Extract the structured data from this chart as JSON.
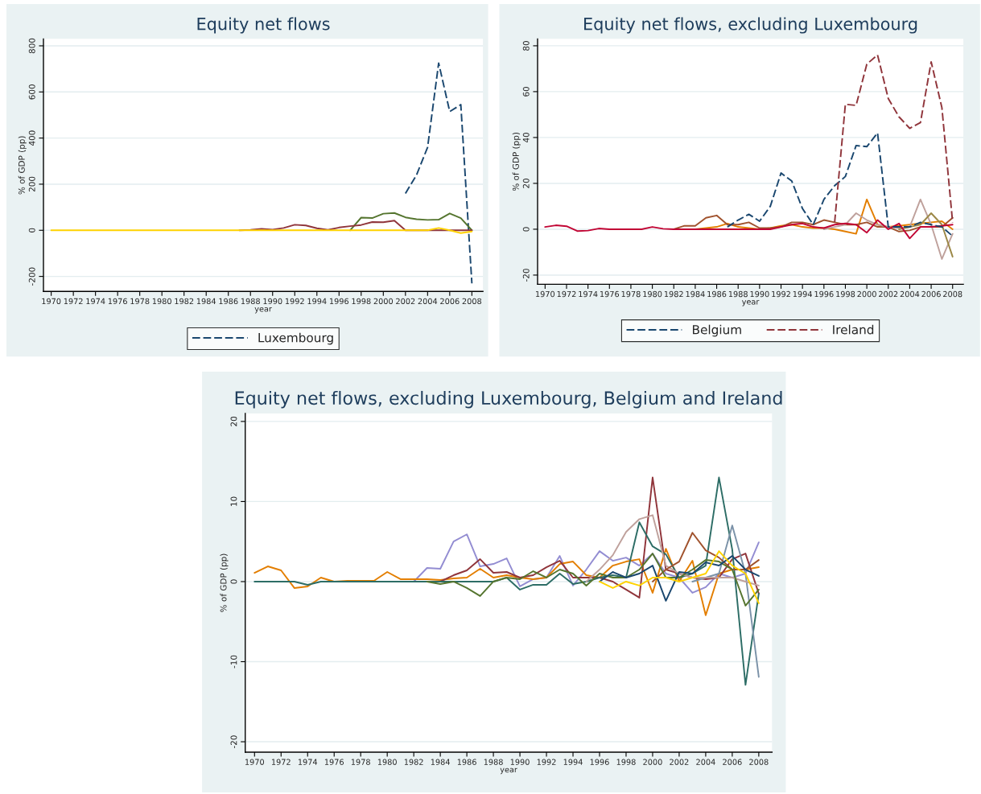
{
  "chart_data": [
    {
      "type": "line",
      "title": "Equity net flows",
      "xlabel": "year",
      "ylabel": "% of GDP (pp)",
      "x": [
        1970,
        1971,
        1972,
        1973,
        1974,
        1975,
        1976,
        1977,
        1978,
        1979,
        1980,
        1981,
        1982,
        1983,
        1984,
        1985,
        1986,
        1987,
        1988,
        1989,
        1990,
        1991,
        1992,
        1993,
        1994,
        1995,
        1996,
        1997,
        1998,
        1999,
        2000,
        2001,
        2002,
        2003,
        2004,
        2005,
        2006,
        2007,
        2008
      ],
      "xlim": [
        1969.3,
        2009
      ],
      "xticks": [
        1970,
        1972,
        1974,
        1976,
        1978,
        1980,
        1982,
        1984,
        1986,
        1988,
        1990,
        1992,
        1994,
        1996,
        1998,
        2000,
        2002,
        2004,
        2006,
        2008
      ],
      "ylim": [
        -265,
        830
      ],
      "yticks": [
        -200,
        0,
        200,
        400,
        600,
        800
      ],
      "grid": "y",
      "legend": "bottom",
      "series": [
        {
          "name": "Luxembourg",
          "color": "#1a476f",
          "line_style": "dashed",
          "values": [
            null,
            null,
            null,
            null,
            null,
            null,
            null,
            null,
            null,
            null,
            null,
            null,
            null,
            null,
            null,
            null,
            null,
            null,
            null,
            null,
            null,
            null,
            null,
            null,
            null,
            null,
            null,
            null,
            null,
            null,
            null,
            null,
            160,
            240,
            360,
            725,
            515,
            545,
            -230
          ]
        },
        {
          "color": "#55752f",
          "line_style": "solid",
          "values": [
            null,
            null,
            null,
            null,
            null,
            null,
            null,
            null,
            null,
            null,
            null,
            null,
            null,
            null,
            null,
            null,
            null,
            null,
            null,
            null,
            null,
            null,
            null,
            null,
            null,
            null,
            null,
            0,
            55,
            53,
            72,
            75,
            56,
            48,
            45,
            46,
            73,
            53,
            0
          ]
        },
        {
          "color": "#90353b",
          "line_style": "solid",
          "values": [
            null,
            null,
            null,
            null,
            null,
            null,
            null,
            null,
            null,
            null,
            null,
            null,
            null,
            null,
            null,
            null,
            null,
            0,
            2,
            6,
            3,
            10,
            24,
            21,
            9,
            2,
            12,
            18,
            23,
            36,
            35,
            42,
            0,
            0,
            0,
            0,
            0,
            0,
            0
          ]
        },
        {
          "color": "#ffd200",
          "line_style": "solid",
          "values": [
            0,
            0,
            0,
            0,
            0,
            0,
            0,
            0,
            0,
            0,
            0,
            0,
            0,
            0,
            0,
            0,
            0,
            0,
            0,
            0,
            0,
            0,
            0,
            0,
            0,
            0,
            0,
            0,
            0,
            0,
            0,
            0,
            0,
            0,
            0,
            10,
            0,
            -12,
            -5
          ]
        }
      ]
    },
    {
      "type": "line",
      "title": "Equity net flows, excluding Luxembourg",
      "xlabel": "year",
      "ylabel": "% of GDP (pp)",
      "x": [
        1970,
        1971,
        1972,
        1973,
        1974,
        1975,
        1976,
        1977,
        1978,
        1979,
        1980,
        1981,
        1982,
        1983,
        1984,
        1985,
        1986,
        1987,
        1988,
        1989,
        1990,
        1991,
        1992,
        1993,
        1994,
        1995,
        1996,
        1997,
        1998,
        1999,
        2000,
        2001,
        2002,
        2003,
        2004,
        2005,
        2006,
        2007,
        2008
      ],
      "xlim": [
        1969.3,
        2009
      ],
      "xticks": [
        1970,
        1972,
        1974,
        1976,
        1978,
        1980,
        1982,
        1984,
        1986,
        1988,
        1990,
        1992,
        1994,
        1996,
        1998,
        2000,
        2002,
        2004,
        2006,
        2008
      ],
      "ylim": [
        -24,
        83
      ],
      "yticks": [
        -20,
        0,
        20,
        40,
        60,
        80
      ],
      "grid": "y",
      "legend": "bottom",
      "series": [
        {
          "color": "#e37e00",
          "line_style": "solid",
          "values": [
            null,
            null,
            null,
            null,
            null,
            null,
            null,
            null,
            null,
            null,
            null,
            null,
            null,
            null,
            0,
            0.5,
            1,
            2.5,
            1,
            0.5,
            0,
            0.5,
            1.5,
            2,
            1,
            0.5,
            0.5,
            0,
            -1,
            -2,
            13,
            2,
            1,
            1.5,
            2,
            2.5,
            3,
            3.5,
            0
          ]
        },
        {
          "color": "#a0522d",
          "line_style": "solid",
          "values": [
            null,
            null,
            null,
            null,
            null,
            null,
            null,
            null,
            null,
            null,
            null,
            null,
            0,
            1.5,
            1.5,
            5,
            6,
            2,
            2,
            3,
            0.5,
            0.5,
            1,
            3,
            3,
            2,
            4,
            3,
            2,
            2,
            3,
            1,
            1,
            -1,
            -0.5,
            1,
            1,
            1,
            5
          ]
        },
        {
          "color": "#bfa19c",
          "line_style": "solid",
          "values": [
            null,
            null,
            null,
            null,
            null,
            null,
            null,
            null,
            null,
            null,
            null,
            null,
            null,
            null,
            null,
            null,
            null,
            null,
            null,
            null,
            null,
            null,
            null,
            null,
            null,
            null,
            0,
            1,
            2,
            7,
            4,
            2,
            1,
            0.5,
            1,
            13,
            2,
            -13,
            -2
          ]
        },
        {
          "color": "#9c8847",
          "line_style": "solid",
          "values": [
            null,
            null,
            null,
            null,
            null,
            null,
            null,
            null,
            null,
            null,
            null,
            null,
            null,
            null,
            null,
            null,
            null,
            null,
            null,
            null,
            null,
            null,
            null,
            null,
            null,
            null,
            null,
            null,
            null,
            null,
            null,
            null,
            null,
            0,
            1,
            2,
            7,
            2,
            -12
          ]
        },
        {
          "color": "#c10534",
          "line_style": "solid",
          "values": [
            1,
            1.7,
            1.3,
            -0.8,
            -0.6,
            0.3,
            0,
            0,
            0,
            0,
            1,
            0.2,
            0,
            0,
            0,
            0,
            0,
            0,
            0,
            0,
            0,
            0,
            1,
            2,
            2.5,
            1,
            0.5,
            2,
            2.5,
            2,
            -1.5,
            4,
            0,
            2.5,
            -4,
            1,
            1,
            1.5,
            2
          ]
        },
        {
          "name": "Belgium",
          "color": "#1a476f",
          "line_style": "dashed",
          "values": [
            null,
            null,
            null,
            null,
            null,
            null,
            null,
            null,
            null,
            null,
            null,
            null,
            null,
            null,
            null,
            null,
            null,
            1,
            4,
            6.5,
            3.5,
            10,
            24.5,
            21,
            9,
            2,
            13,
            19,
            23,
            36.5,
            36,
            42,
            1,
            1,
            1,
            3,
            2,
            1,
            -3
          ]
        },
        {
          "name": "Ireland",
          "color": "#90353b",
          "line_style": "dashed",
          "values": [
            null,
            null,
            null,
            null,
            null,
            null,
            null,
            null,
            null,
            null,
            null,
            null,
            null,
            null,
            null,
            null,
            null,
            null,
            null,
            null,
            null,
            null,
            null,
            null,
            null,
            null,
            null,
            3,
            54.5,
            54,
            72,
            76,
            57,
            49,
            44,
            46.5,
            73,
            53,
            3
          ]
        }
      ]
    },
    {
      "type": "line",
      "title": "Equity net flows, excluding Luxembourg, Belgium and Ireland",
      "xlabel": "year",
      "ylabel": "% of GDP (pp)",
      "x": [
        1970,
        1971,
        1972,
        1973,
        1974,
        1975,
        1976,
        1977,
        1978,
        1979,
        1980,
        1981,
        1982,
        1983,
        1984,
        1985,
        1986,
        1987,
        1988,
        1989,
        1990,
        1991,
        1992,
        1993,
        1994,
        1995,
        1996,
        1997,
        1998,
        1999,
        2000,
        2001,
        2002,
        2003,
        2004,
        2005,
        2006,
        2007,
        2008
      ],
      "xlim": [
        1969.3,
        2009
      ],
      "xticks": [
        1970,
        1972,
        1974,
        1976,
        1978,
        1980,
        1982,
        1984,
        1986,
        1988,
        1990,
        1992,
        1994,
        1996,
        1998,
        2000,
        2002,
        2004,
        2006,
        2008
      ],
      "ylim": [
        -21.3,
        21
      ],
      "yticks": [
        -20,
        -10,
        0,
        10,
        20
      ],
      "grid": "y",
      "series": [
        {
          "color": "#938dd2",
          "line_style": "solid",
          "values": [
            null,
            null,
            null,
            null,
            null,
            null,
            null,
            null,
            null,
            null,
            null,
            null,
            0,
            1.7,
            1.6,
            5,
            5.9,
            1.9,
            2.2,
            2.9,
            -0.6,
            0.3,
            0.5,
            3.2,
            -0.5,
            1.5,
            3.8,
            2.6,
            3,
            2,
            3.5,
            1,
            0.5,
            -1.4,
            -0.7,
            1,
            0.5,
            1,
            4.9
          ]
        },
        {
          "color": "#e37e00",
          "line_style": "solid",
          "values": [
            1.1,
            1.9,
            1.4,
            -0.8,
            -0.6,
            0.5,
            0,
            0.1,
            0.1,
            0.1,
            1.2,
            0.3,
            0.3,
            0.3,
            0.2,
            0.4,
            0.5,
            1.6,
            0.5,
            0.8,
            0.5,
            0.3,
            0.5,
            2.2,
            2.5,
            0.8,
            0.5,
            2,
            2.5,
            2.8,
            -1.4,
            4.1,
            0,
            2.6,
            -4.2,
            1,
            1.5,
            1.5,
            1.8
          ]
        },
        {
          "color": "#90353b",
          "line_style": "solid",
          "values": [
            null,
            null,
            null,
            null,
            null,
            null,
            null,
            null,
            null,
            null,
            null,
            null,
            null,
            null,
            0,
            0.8,
            1.4,
            2.8,
            1.1,
            1.2,
            0.5,
            0.8,
            1.8,
            2.6,
            0.5,
            0.5,
            0.5,
            0,
            -1,
            -2,
            13,
            1.5,
            1,
            0.5,
            0.3,
            0.5,
            2.8,
            3.5,
            -1.5
          ]
        },
        {
          "color": "#2d6d66",
          "line_style": "solid",
          "values": [
            0,
            0,
            0,
            0,
            -0.4,
            0,
            0,
            0,
            0,
            0,
            0,
            0,
            0,
            0,
            0,
            0,
            0,
            0,
            0,
            0.5,
            -1,
            -0.4,
            -0.4,
            1,
            -0.3,
            0,
            0.5,
            0.8,
            0.5,
            7.4,
            4.4,
            3.4,
            0.5,
            1,
            2,
            13,
            4,
            -12.9,
            -1.5
          ]
        },
        {
          "color": "#7b92a8",
          "line_style": "solid",
          "values": [
            null,
            null,
            null,
            null,
            null,
            null,
            null,
            null,
            null,
            null,
            null,
            null,
            null,
            null,
            null,
            null,
            null,
            null,
            null,
            null,
            null,
            null,
            null,
            null,
            null,
            null,
            null,
            null,
            null,
            null,
            null,
            null,
            null,
            0,
            0.5,
            1,
            7,
            1,
            -11.9
          ]
        },
        {
          "color": "#bfa19c",
          "line_style": "solid",
          "values": [
            null,
            null,
            null,
            null,
            null,
            null,
            null,
            null,
            null,
            null,
            null,
            null,
            null,
            null,
            null,
            null,
            null,
            null,
            null,
            null,
            null,
            null,
            null,
            null,
            null,
            0,
            1.5,
            3.3,
            6.2,
            7.8,
            8.3,
            2,
            1,
            0.5,
            0.5,
            0.5,
            0.5,
            0,
            -0.5
          ]
        },
        {
          "color": "#a0522d",
          "line_style": "solid",
          "values": [
            null,
            null,
            null,
            null,
            null,
            null,
            null,
            null,
            null,
            null,
            null,
            null,
            null,
            null,
            null,
            null,
            null,
            null,
            null,
            null,
            null,
            null,
            null,
            null,
            null,
            null,
            null,
            null,
            null,
            null,
            0,
            1.5,
            2.5,
            6.1,
            3.9,
            3,
            1.5,
            1.5,
            2.7
          ]
        },
        {
          "color": "#55752f",
          "line_style": "solid",
          "values": [
            null,
            null,
            null,
            null,
            null,
            null,
            null,
            null,
            null,
            null,
            null,
            null,
            null,
            0,
            -0.3,
            0,
            -0.8,
            -1.8,
            0,
            0.5,
            0.3,
            1.3,
            0.5,
            1.5,
            1,
            -0.5,
            1,
            0.5,
            0.5,
            1.5,
            3.5,
            0.5,
            0.5,
            1.5,
            2.7,
            2.5,
            1.5,
            -3,
            -1
          ]
        },
        {
          "color": "#1a476f",
          "line_style": "solid",
          "values": [
            null,
            null,
            null,
            null,
            null,
            null,
            null,
            null,
            null,
            null,
            null,
            null,
            null,
            null,
            null,
            null,
            null,
            null,
            null,
            null,
            null,
            null,
            null,
            null,
            null,
            null,
            0,
            1.2,
            0.5,
            1,
            2,
            -2.4,
            1.2,
            1,
            2.4,
            2,
            3.2,
            1.5,
            0.7
          ]
        },
        {
          "color": "#ffd200",
          "line_style": "solid",
          "values": [
            null,
            null,
            null,
            null,
            null,
            null,
            null,
            null,
            null,
            null,
            null,
            null,
            null,
            null,
            null,
            null,
            null,
            null,
            null,
            null,
            null,
            null,
            null,
            null,
            null,
            null,
            0,
            -0.8,
            0,
            -0.5,
            0.5,
            0.5,
            0,
            0.5,
            1,
            3.8,
            2,
            1,
            -2.7
          ]
        }
      ]
    }
  ]
}
